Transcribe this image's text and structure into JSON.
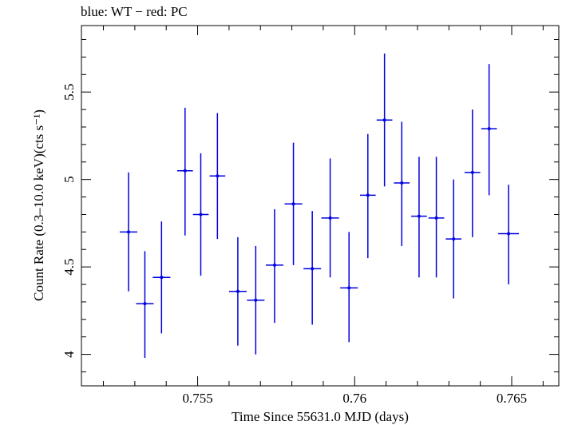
{
  "chart_data": {
    "type": "scatter",
    "title": "blue: WT − red: PC",
    "xlabel": "Time Since 55631.0 MJD (days)",
    "ylabel": "Count Rate (0.3–10.0 keV)(cts s⁻¹)",
    "xlim": [
      0.7513,
      0.7665
    ],
    "ylim": [
      3.82,
      5.88
    ],
    "x_ticks": [
      {
        "value": 0.755,
        "label": "0.755"
      },
      {
        "value": 0.76,
        "label": "0.76"
      },
      {
        "value": 0.765,
        "label": "0.765"
      }
    ],
    "y_ticks": [
      {
        "value": 4,
        "label": "4"
      },
      {
        "value": 4.5,
        "label": "4.5"
      },
      {
        "value": 5,
        "label": "5"
      },
      {
        "value": 5.5,
        "label": "5.5"
      }
    ],
    "grid": false,
    "series": [
      {
        "color": "#0000e0",
        "points": [
          {
            "x": 0.7528,
            "y": 4.7,
            "xerr": 0.00028,
            "ylo": 4.36,
            "yhi": 5.04
          },
          {
            "x": 0.75332,
            "y": 4.29,
            "xerr": 0.00028,
            "ylo": 3.98,
            "yhi": 4.59
          },
          {
            "x": 0.75385,
            "y": 4.44,
            "xerr": 0.00028,
            "ylo": 4.12,
            "yhi": 4.76
          },
          {
            "x": 0.7546,
            "y": 5.05,
            "xerr": 0.00025,
            "ylo": 4.68,
            "yhi": 5.41
          },
          {
            "x": 0.7551,
            "y": 4.8,
            "xerr": 0.00025,
            "ylo": 4.45,
            "yhi": 5.15
          },
          {
            "x": 0.75563,
            "y": 5.02,
            "xerr": 0.00025,
            "ylo": 4.66,
            "yhi": 5.38
          },
          {
            "x": 0.75628,
            "y": 4.36,
            "xerr": 0.00028,
            "ylo": 4.05,
            "yhi": 4.67
          },
          {
            "x": 0.75685,
            "y": 4.31,
            "xerr": 0.00028,
            "ylo": 4.0,
            "yhi": 4.62
          },
          {
            "x": 0.75745,
            "y": 4.51,
            "xerr": 0.00028,
            "ylo": 4.18,
            "yhi": 4.83
          },
          {
            "x": 0.75805,
            "y": 4.86,
            "xerr": 0.00028,
            "ylo": 4.51,
            "yhi": 5.21
          },
          {
            "x": 0.75865,
            "y": 4.49,
            "xerr": 0.00028,
            "ylo": 4.17,
            "yhi": 4.82
          },
          {
            "x": 0.75922,
            "y": 4.78,
            "xerr": 0.00028,
            "ylo": 4.44,
            "yhi": 5.12
          },
          {
            "x": 0.75982,
            "y": 4.38,
            "xerr": 0.00028,
            "ylo": 4.07,
            "yhi": 4.7
          },
          {
            "x": 0.76042,
            "y": 4.91,
            "xerr": 0.00025,
            "ylo": 4.55,
            "yhi": 5.26
          },
          {
            "x": 0.76095,
            "y": 5.34,
            "xerr": 0.00025,
            "ylo": 4.96,
            "yhi": 5.72
          },
          {
            "x": 0.7615,
            "y": 4.98,
            "xerr": 0.00025,
            "ylo": 4.62,
            "yhi": 5.33
          },
          {
            "x": 0.76205,
            "y": 4.79,
            "xerr": 0.00025,
            "ylo": 4.44,
            "yhi": 5.13
          },
          {
            "x": 0.7626,
            "y": 4.78,
            "xerr": 0.00025,
            "ylo": 4.44,
            "yhi": 5.13
          },
          {
            "x": 0.76315,
            "y": 4.66,
            "xerr": 0.00025,
            "ylo": 4.32,
            "yhi": 5.0
          },
          {
            "x": 0.76375,
            "y": 5.04,
            "xerr": 0.00025,
            "ylo": 4.67,
            "yhi": 5.4
          },
          {
            "x": 0.76428,
            "y": 5.29,
            "xerr": 0.00025,
            "ylo": 4.91,
            "yhi": 5.66
          },
          {
            "x": 0.7649,
            "y": 4.69,
            "xerr": 0.00033,
            "ylo": 4.4,
            "yhi": 4.97
          }
        ]
      }
    ]
  }
}
